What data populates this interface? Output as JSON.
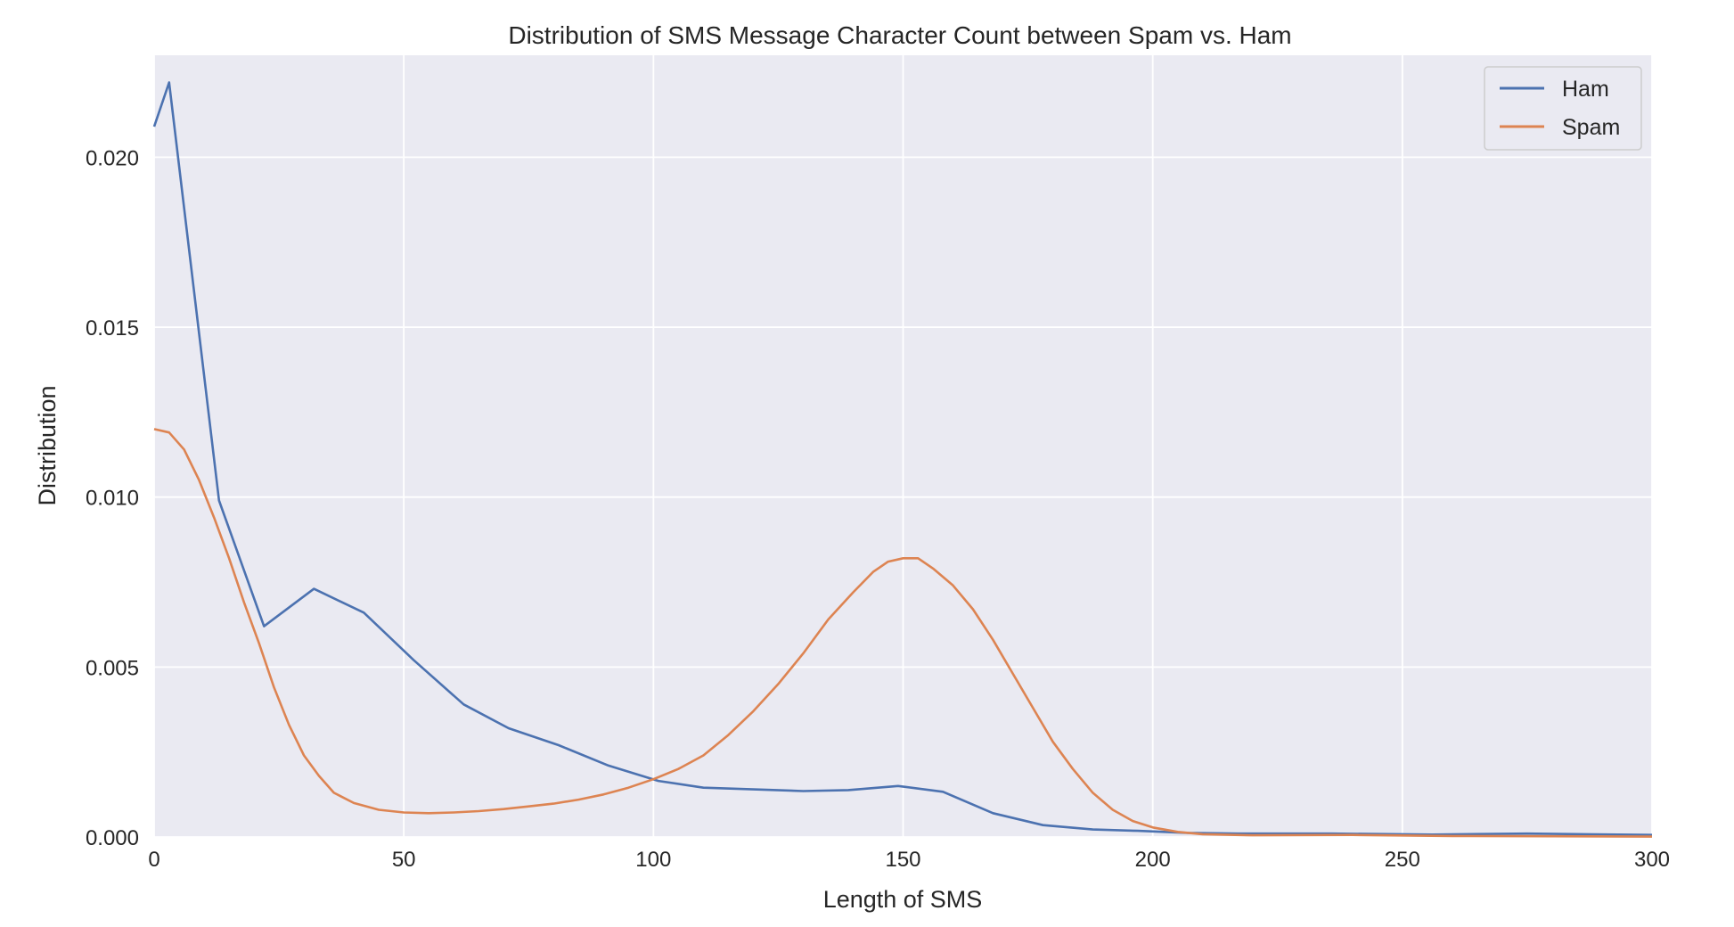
{
  "chart_data": {
    "type": "line",
    "title": "Distribution of SMS Message Character Count between Spam vs. Ham",
    "xlabel": "Length of SMS",
    "ylabel": "Distribution",
    "xlim": [
      0,
      300
    ],
    "ylim": [
      0,
      0.023
    ],
    "xticks": [
      0,
      50,
      100,
      150,
      200,
      250,
      300
    ],
    "xtick_labels": [
      "0",
      "50",
      "100",
      "150",
      "200",
      "250",
      "300"
    ],
    "yticks": [
      0,
      0.005,
      0.01,
      0.015,
      0.02
    ],
    "ytick_labels": [
      "0.000",
      "0.005",
      "0.010",
      "0.015",
      "0.020"
    ],
    "grid": true,
    "legend_position": "top-right",
    "background_color": "#eaeaf2",
    "series": [
      {
        "name": "Ham",
        "color": "#4c72b0",
        "points": [
          [
            0,
            0.0209
          ],
          [
            3,
            0.0222
          ],
          [
            13,
            0.0099
          ],
          [
            22,
            0.0062
          ],
          [
            32,
            0.0073
          ],
          [
            42,
            0.0066
          ],
          [
            52,
            0.0052
          ],
          [
            62,
            0.0039
          ],
          [
            71,
            0.0032
          ],
          [
            81,
            0.0027
          ],
          [
            91,
            0.0021
          ],
          [
            101,
            0.00165
          ],
          [
            110,
            0.00145
          ],
          [
            120,
            0.0014
          ],
          [
            130,
            0.00135
          ],
          [
            139,
            0.00138
          ],
          [
            149,
            0.0015
          ],
          [
            158,
            0.00133
          ],
          [
            168,
            0.0007
          ],
          [
            178,
            0.00035
          ],
          [
            188,
            0.00022
          ],
          [
            197,
            0.00018
          ],
          [
            207,
            0.00012
          ],
          [
            217,
            0.0001
          ],
          [
            236,
            0.0001
          ],
          [
            256,
            7e-05
          ],
          [
            275,
            0.0001
          ],
          [
            300,
            6e-05
          ]
        ]
      },
      {
        "name": "Spam",
        "color": "#dd8452",
        "points": [
          [
            0,
            0.012
          ],
          [
            3,
            0.0119
          ],
          [
            6,
            0.0114
          ],
          [
            9,
            0.0105
          ],
          [
            12,
            0.0094
          ],
          [
            15,
            0.0082
          ],
          [
            18,
            0.0069
          ],
          [
            21,
            0.0057
          ],
          [
            24,
            0.0044
          ],
          [
            27,
            0.0033
          ],
          [
            30,
            0.0024
          ],
          [
            33,
            0.0018
          ],
          [
            36,
            0.0013
          ],
          [
            40,
            0.001
          ],
          [
            45,
            0.0008
          ],
          [
            50,
            0.00072
          ],
          [
            55,
            0.0007
          ],
          [
            60,
            0.00072
          ],
          [
            65,
            0.00076
          ],
          [
            70,
            0.00082
          ],
          [
            75,
            0.0009
          ],
          [
            80,
            0.00098
          ],
          [
            85,
            0.0011
          ],
          [
            90,
            0.00125
          ],
          [
            95,
            0.00145
          ],
          [
            100,
            0.0017
          ],
          [
            105,
            0.002
          ],
          [
            110,
            0.0024
          ],
          [
            115,
            0.003
          ],
          [
            120,
            0.0037
          ],
          [
            125,
            0.0045
          ],
          [
            130,
            0.0054
          ],
          [
            135,
            0.0064
          ],
          [
            140,
            0.0072
          ],
          [
            144,
            0.0078
          ],
          [
            147,
            0.0081
          ],
          [
            150,
            0.0082
          ],
          [
            153,
            0.0082
          ],
          [
            156,
            0.0079
          ],
          [
            160,
            0.0074
          ],
          [
            164,
            0.0067
          ],
          [
            168,
            0.0058
          ],
          [
            172,
            0.0048
          ],
          [
            176,
            0.0038
          ],
          [
            180,
            0.0028
          ],
          [
            184,
            0.002
          ],
          [
            188,
            0.0013
          ],
          [
            192,
            0.0008
          ],
          [
            196,
            0.00047
          ],
          [
            200,
            0.00028
          ],
          [
            205,
            0.00015
          ],
          [
            210,
            8e-05
          ],
          [
            220,
            5e-05
          ],
          [
            240,
            6e-05
          ],
          [
            260,
            3e-05
          ],
          [
            280,
            2e-05
          ],
          [
            300,
            1e-05
          ]
        ]
      }
    ]
  }
}
